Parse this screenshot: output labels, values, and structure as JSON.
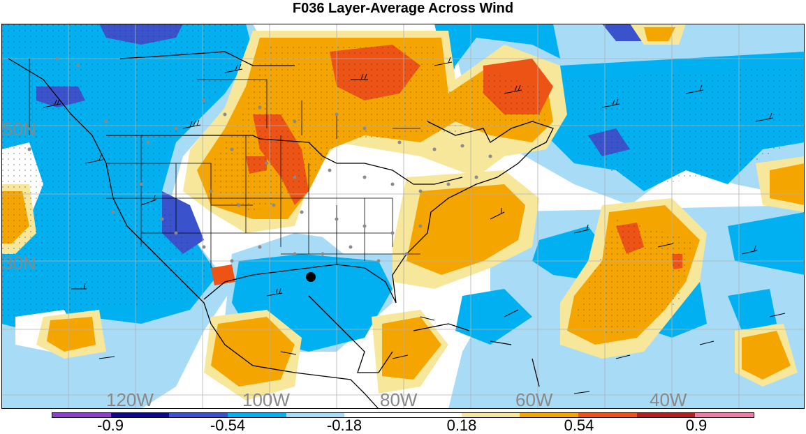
{
  "title": "F036 Layer-Average Across Wind",
  "map": {
    "latitude_labels": [
      "50N",
      "30N"
    ],
    "longitude_labels": [
      "120W",
      "100W",
      "80W",
      "60W",
      "40W"
    ],
    "label_color": "#888888",
    "land_outline_color": "#000000",
    "station_marker_color": "#8a8a8a"
  },
  "colorbar": {
    "colors": [
      "#8e3fd0",
      "#0a0a8a",
      "#3a53cc",
      "#00b0f0",
      "#a8dcf6",
      "#ffffff",
      "#ffffff",
      "#f7e79a",
      "#f5a500",
      "#ee5316",
      "#b02020",
      "#f07aa8"
    ],
    "labels": [
      "-0.9",
      "-0.54",
      "-0.18",
      "0.18",
      "0.54",
      "0.9"
    ]
  }
}
